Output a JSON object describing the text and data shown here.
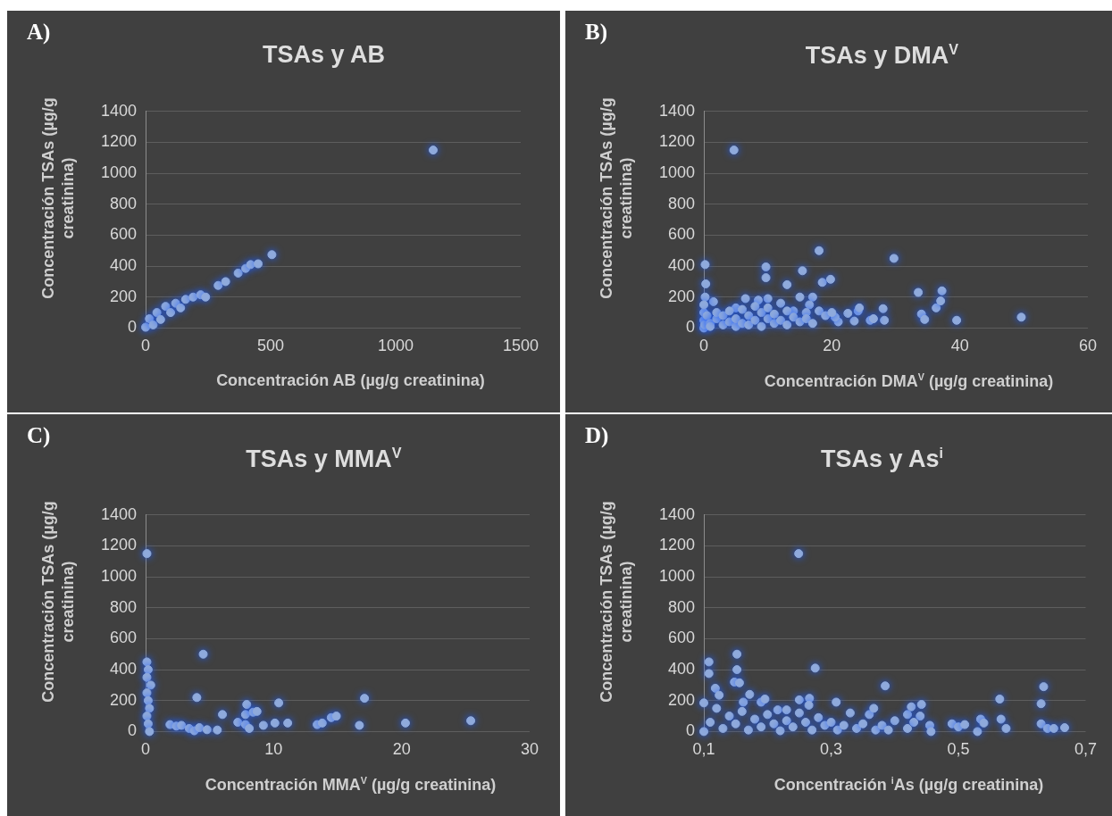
{
  "chart_data": [
    {
      "type": "scatter",
      "title": "TSAs y AB",
      "xlabel": "Concentración AB (µg/g creatinina)",
      "ylabel": "Concentración TSAs (µg/g creatinina)",
      "annotations": [
        "A)"
      ],
      "xlim": [
        0,
        1500
      ],
      "xticks": [
        0,
        500,
        1000,
        1500
      ],
      "ylim": [
        0,
        1400
      ],
      "yticks": [
        0,
        200,
        400,
        600,
        800,
        1000,
        1200,
        1400
      ],
      "grid": "y",
      "marker": "circle",
      "series": [
        {
          "color": "#8faadc",
          "x": [
            0,
            15,
            30,
            45,
            60,
            80,
            100,
            120,
            140,
            160,
            190,
            220,
            240,
            290,
            320,
            370,
            400,
            420,
            450,
            505,
            1150
          ],
          "values": [
            5,
            60,
            20,
            100,
            55,
            140,
            100,
            160,
            130,
            185,
            200,
            215,
            200,
            275,
            300,
            355,
            385,
            410,
            415,
            474,
            1150
          ]
        }
      ]
    },
    {
      "type": "scatter",
      "title": "TSAs y DMA$^{V}$",
      "xlabel": "Concentración DMA$^{V}$ (µg/g creatinina)",
      "ylabel": "Concentración TSAs (µg/g creatinina)",
      "annotations": [
        "B)"
      ],
      "xlim": [
        0,
        60
      ],
      "xticks": [
        0,
        20,
        40,
        60
      ],
      "ylim": [
        0,
        1400
      ],
      "yticks": [
        0,
        200,
        400,
        600,
        800,
        1000,
        1200,
        1400
      ],
      "grid": "y",
      "marker": "circle",
      "series": [
        {
          "color": "#8faadc",
          "x": [
            4.7,
            0.2,
            0.3,
            9.7,
            9.7,
            13,
            15.4,
            18,
            18.5,
            19.8,
            29.7,
            33.5,
            37.2,
            34,
            34.5,
            36.3,
            37,
            39.5,
            49.6,
            28,
            28.2,
            26,
            26.5,
            24.1,
            24.3,
            23.5,
            22.5,
            21,
            20.5,
            17,
            16.5,
            15,
            14,
            12,
            10,
            8.5,
            6.5,
            5,
            1.5,
            0.2,
            0,
            0,
            0,
            0,
            0.1,
            0.5,
            1,
            1,
            2,
            2,
            3,
            3,
            4,
            4,
            5,
            5,
            6,
            6,
            7,
            7,
            8,
            8,
            9,
            9,
            10,
            10,
            11,
            11,
            12,
            13,
            13,
            14,
            15,
            16,
            16,
            17,
            18,
            19,
            20
          ],
          "values": [
            1150,
            410,
            285,
            395,
            325,
            280,
            370,
            500,
            295,
            315,
            450,
            230,
            240,
            90,
            55,
            130,
            175,
            50,
            70,
            125,
            50,
            50,
            60,
            110,
            130,
            45,
            95,
            40,
            70,
            200,
            150,
            200,
            110,
            160,
            190,
            180,
            190,
            130,
            170,
            200,
            0,
            50,
            100,
            150,
            20,
            80,
            30,
            10,
            60,
            100,
            20,
            80,
            40,
            110,
            10,
            60,
            30,
            120,
            80,
            20,
            50,
            140,
            100,
            10,
            60,
            130,
            30,
            90,
            50,
            110,
            20,
            70,
            40,
            100,
            60,
            30,
            110,
            80,
            100
          ]
        }
      ]
    },
    {
      "type": "scatter",
      "title": "TSAs y MMA$^{V}$",
      "xlabel": "Concentración MMA$^{V}$ (µg/g creatinina)",
      "ylabel": "Concentración TSAs (µg/g creatinina)",
      "annotations": [
        "C)"
      ],
      "xlim": [
        0,
        30
      ],
      "xticks": [
        0,
        10,
        20,
        30
      ],
      "ylim": [
        0,
        1400
      ],
      "yticks": [
        0,
        200,
        400,
        600,
        800,
        1000,
        1200,
        1400
      ],
      "grid": "y",
      "marker": "circle",
      "series": [
        {
          "color": "#8faadc",
          "x": [
            0.1,
            0.1,
            0.2,
            0.1,
            0.4,
            0.1,
            0.2,
            0.3,
            0.1,
            0.2,
            0.3,
            1.9,
            2.4,
            2.8,
            3.4,
            3.8,
            4.2,
            4,
            4.5,
            4.8,
            5.6,
            6,
            7.2,
            7.8,
            7.8,
            7.9,
            8.1,
            8.4,
            8.7,
            9.2,
            10.1,
            10.4,
            11.1,
            13.4,
            13.8,
            14.5,
            14.9,
            16.7,
            17.1,
            20.3,
            25.4
          ],
          "values": [
            1150,
            450,
            400,
            350,
            300,
            250,
            200,
            150,
            100,
            50,
            0,
            45,
            35,
            40,
            20,
            5,
            25,
            220,
            500,
            12,
            10,
            110,
            60,
            45,
            110,
            175,
            20,
            125,
            130,
            40,
            55,
            185,
            55,
            45,
            55,
            90,
            100,
            40,
            215,
            55,
            70
          ]
        }
      ]
    },
    {
      "type": "scatter",
      "title": "TSAs y As$^{i}$",
      "xlabel": "Concentración $^{i}$As (µg/g creatinina)",
      "ylabel": "Concentración TSAs (µg/g creatinina)",
      "annotations": [
        "D)"
      ],
      "xlim": [
        0.1,
        0.7
      ],
      "xticks": [
        {
          "value": 0.1,
          "label": "0,1"
        },
        {
          "value": 0.3,
          "label": "0,3"
        },
        {
          "value": 0.5,
          "label": "0,5"
        },
        {
          "value": 0.7,
          "label": "0,7"
        }
      ],
      "ylim": [
        0,
        1400
      ],
      "yticks": [
        0,
        200,
        400,
        600,
        800,
        1000,
        1200,
        1400
      ],
      "grid": "y",
      "marker": "circle",
      "series": [
        {
          "color": "#8faadc",
          "x": [
            0.249,
            0.108,
            0.108,
            0.118,
            0.124,
            0.1,
            0.152,
            0.152,
            0.148,
            0.156,
            0.162,
            0.172,
            0.19,
            0.196,
            0.216,
            0.23,
            0.25,
            0.266,
            0.265,
            0.275,
            0.308,
            0.385,
            0.33,
            0.36,
            0.367,
            0.4,
            0.42,
            0.426,
            0.442,
            0.44,
            0.43,
            0.42,
            0.455,
            0.457,
            0.49,
            0.5,
            0.51,
            0.53,
            0.535,
            0.54,
            0.565,
            0.567,
            0.575,
            0.63,
            0.634,
            0.63,
            0.64,
            0.65,
            0.667,
            0.1,
            0.11,
            0.12,
            0.13,
            0.14,
            0.15,
            0.16,
            0.17,
            0.18,
            0.19,
            0.2,
            0.21,
            0.22,
            0.23,
            0.24,
            0.25,
            0.26,
            0.27,
            0.28,
            0.29,
            0.3,
            0.31,
            0.32,
            0.34,
            0.35,
            0.37,
            0.38,
            0.39
          ],
          "values": [
            1150,
            450,
            375,
            280,
            235,
            185,
            500,
            400,
            320,
            315,
            190,
            240,
            190,
            210,
            140,
            140,
            205,
            215,
            170,
            410,
            190,
            295,
            120,
            110,
            150,
            70,
            110,
            160,
            175,
            100,
            60,
            20,
            40,
            0,
            50,
            30,
            45,
            0,
            80,
            55,
            210,
            80,
            20,
            180,
            290,
            50,
            20,
            20,
            25,
            0,
            60,
            150,
            20,
            100,
            50,
            130,
            10,
            80,
            30,
            110,
            50,
            5,
            70,
            30,
            120,
            60,
            10,
            90,
            40,
            60,
            10,
            40,
            20,
            50,
            10,
            40,
            10
          ]
        }
      ]
    }
  ]
}
